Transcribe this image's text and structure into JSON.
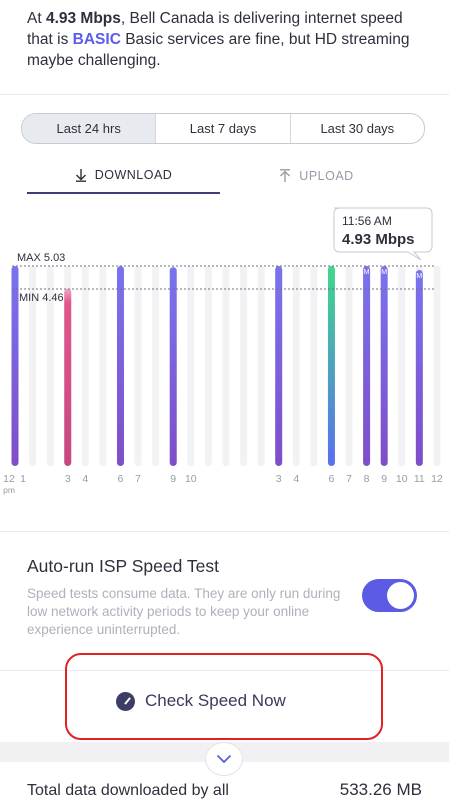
{
  "summary": {
    "prefix": "At ",
    "speed": "4.93 Mbps",
    "middle": ", Bell Canada is delivering internet speed that is ",
    "tier": "BASIC",
    "suffix": " Basic services are fine, but HD streaming maybe challenging."
  },
  "range_tabs": [
    "Last 24 hrs",
    "Last 7 days",
    "Last 30 days"
  ],
  "direction_tabs": {
    "download": "DOWNLOAD",
    "upload": "UPLOAD"
  },
  "colors": {
    "bar": "#7a73ee",
    "bar_bottom": "#7f4ec8",
    "min_bar": "#e0568d",
    "current_bar": "#3fd889",
    "track": "#f2f2f5",
    "toggle": "#5b5be6",
    "highlight": "#e02222"
  },
  "chart_data": {
    "type": "bar",
    "ylim": [
      0,
      5.03
    ],
    "max_label": "MAX 5.03",
    "min_label": "MIN 4.46",
    "tooltip": {
      "time": "11:56 AM",
      "value": "4.93 Mbps"
    },
    "x_labels": [
      "12",
      "1",
      "3",
      "4",
      "6",
      "7",
      "9",
      "10",
      "3",
      "4",
      "6",
      "7",
      "8",
      "9",
      "10",
      "11",
      "12"
    ],
    "x_sublabel": "pm",
    "slots": 25,
    "measured": [
      {
        "slot": 0,
        "value": 5.03,
        "kind": "normal"
      },
      {
        "slot": 3,
        "value": 4.46,
        "kind": "min"
      },
      {
        "slot": 6,
        "value": 5.03,
        "kind": "normal"
      },
      {
        "slot": 9,
        "value": 5.0,
        "kind": "normal"
      },
      {
        "slot": 15,
        "value": 5.03,
        "kind": "normal"
      },
      {
        "slot": 18,
        "value": 5.03,
        "kind": "current"
      },
      {
        "slot": 20,
        "value": 5.03,
        "kind": "normal",
        "marker": "M"
      },
      {
        "slot": 21,
        "value": 5.03,
        "kind": "normal",
        "marker": "M"
      },
      {
        "slot": 23,
        "value": 4.93,
        "kind": "normal",
        "marker": "M"
      }
    ]
  },
  "autorun": {
    "title": "Auto-run ISP Speed Test",
    "description": "Speed tests consume data. They are only run during low network activity periods to keep your online experience uninterrupted."
  },
  "check_button": "Check Speed Now",
  "total": {
    "label": "Total data downloaded by all",
    "value": "533.26 MB"
  }
}
